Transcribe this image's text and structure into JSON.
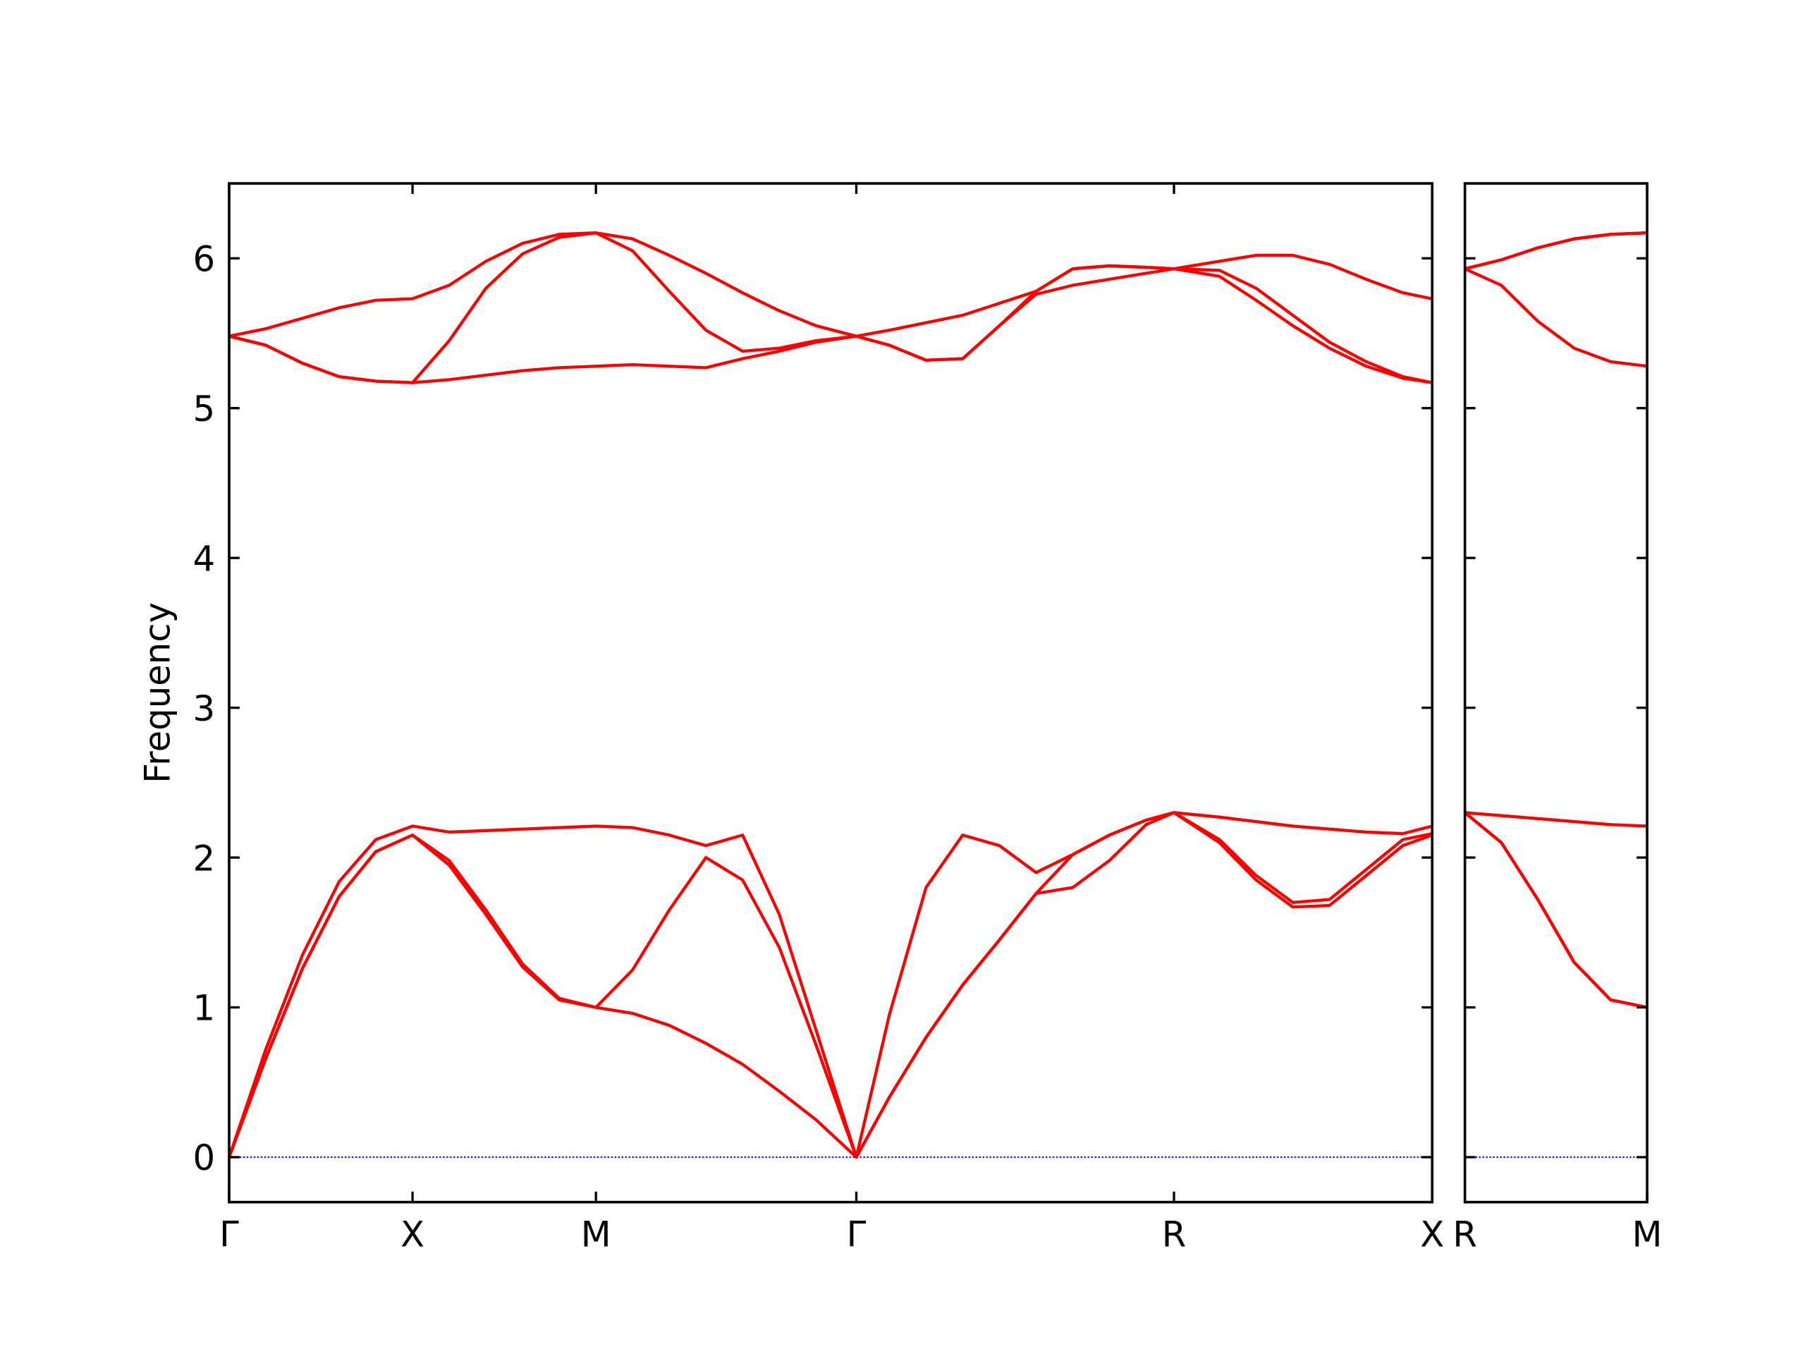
{
  "chart_data": [
    {
      "type": "line",
      "ylabel": "Frequency",
      "color": "#ff0000",
      "show_ytick_labels": true,
      "zero_line": {
        "value": 0,
        "color": "#0000ff"
      },
      "xlim": [
        0,
        3.28
      ],
      "ylim": [
        -0.3,
        6.5
      ],
      "yticks": [
        0,
        1,
        2,
        3,
        4,
        5,
        6
      ],
      "xticks": [
        {
          "value": 0,
          "label": "Γ"
        },
        {
          "value": 0.5,
          "label": "X"
        },
        {
          "value": 1.0,
          "label": "M"
        },
        {
          "value": 1.71,
          "label": "Γ"
        },
        {
          "value": 2.576,
          "label": "R"
        },
        {
          "value": 3.28,
          "label": "X"
        }
      ],
      "x": [
        0,
        0.1,
        0.2,
        0.3,
        0.4,
        0.5,
        0.6,
        0.7,
        0.8,
        0.9,
        1.0,
        1.1,
        1.2,
        1.3,
        1.4,
        1.5,
        1.6,
        1.71,
        1.8,
        1.9,
        2.0,
        2.1,
        2.2,
        2.3,
        2.4,
        2.5,
        2.576,
        2.7,
        2.8,
        2.9,
        3.0,
        3.1,
        3.2,
        3.28
      ],
      "series": [
        {
          "values": [
            0,
            0.66,
            1.26,
            1.74,
            2.04,
            2.15,
            1.95,
            1.62,
            1.27,
            1.05,
            1.0,
            0.96,
            0.88,
            0.76,
            0.62,
            0.44,
            0.25,
            0,
            0.4,
            0.8,
            1.15,
            1.45,
            1.76,
            1.8,
            1.98,
            2.22,
            2.3,
            2.1,
            1.85,
            1.67,
            1.68,
            1.88,
            2.08,
            2.15
          ]
        },
        {
          "values": [
            0,
            0.66,
            1.26,
            1.74,
            2.04,
            2.15,
            1.98,
            1.65,
            1.29,
            1.06,
            1.0,
            1.25,
            1.65,
            2.0,
            1.85,
            1.4,
            0.75,
            0,
            0.4,
            0.8,
            1.15,
            1.45,
            1.76,
            2.02,
            2.15,
            2.25,
            2.3,
            2.12,
            1.88,
            1.7,
            1.72,
            1.92,
            2.12,
            2.16
          ]
        },
        {
          "values": [
            0,
            0.72,
            1.35,
            1.84,
            2.12,
            2.21,
            2.17,
            2.18,
            2.19,
            2.2,
            2.21,
            2.2,
            2.15,
            2.08,
            2.15,
            1.62,
            0.85,
            0,
            0.95,
            1.8,
            2.15,
            2.08,
            1.9,
            2.02,
            2.15,
            2.25,
            2.3,
            2.27,
            2.24,
            2.21,
            2.19,
            2.17,
            2.16,
            2.21
          ]
        },
        {
          "values": [
            5.48,
            5.42,
            5.3,
            5.21,
            5.18,
            5.17,
            5.19,
            5.22,
            5.25,
            5.27,
            5.28,
            5.29,
            5.28,
            5.27,
            5.33,
            5.38,
            5.44,
            5.48,
            5.42,
            5.32,
            5.33,
            5.55,
            5.76,
            5.82,
            5.86,
            5.9,
            5.93,
            5.88,
            5.72,
            5.55,
            5.4,
            5.28,
            5.2,
            5.17
          ]
        },
        {
          "values": [
            5.48,
            5.42,
            5.3,
            5.21,
            5.18,
            5.17,
            5.45,
            5.8,
            6.03,
            6.14,
            6.17,
            6.05,
            5.78,
            5.52,
            5.38,
            5.4,
            5.45,
            5.48,
            5.42,
            5.32,
            5.33,
            5.55,
            5.78,
            5.93,
            5.95,
            5.94,
            5.93,
            5.92,
            5.8,
            5.62,
            5.44,
            5.31,
            5.21,
            5.17
          ]
        },
        {
          "values": [
            5.48,
            5.53,
            5.6,
            5.67,
            5.72,
            5.73,
            5.82,
            5.98,
            6.1,
            6.16,
            6.17,
            6.13,
            6.02,
            5.9,
            5.77,
            5.65,
            5.55,
            5.48,
            5.52,
            5.57,
            5.62,
            5.7,
            5.78,
            5.93,
            5.95,
            5.94,
            5.93,
            5.98,
            6.02,
            6.02,
            5.96,
            5.86,
            5.77,
            5.73
          ]
        }
      ]
    },
    {
      "type": "line",
      "color": "#ff0000",
      "show_ytick_labels": false,
      "zero_line": {
        "value": 0,
        "color": "#0000ff"
      },
      "xlim": [
        3.28,
        3.78
      ],
      "ylim": [
        -0.3,
        6.5
      ],
      "yticks": [
        0,
        1,
        2,
        3,
        4,
        5,
        6
      ],
      "xticks": [
        {
          "value": 3.28,
          "label": "R"
        },
        {
          "value": 3.78,
          "label": "M"
        }
      ],
      "x": [
        3.28,
        3.38,
        3.48,
        3.58,
        3.68,
        3.78
      ],
      "series": [
        {
          "values": [
            2.3,
            2.1,
            1.72,
            1.3,
            1.05,
            1.0
          ]
        },
        {
          "values": [
            2.3,
            2.1,
            1.72,
            1.3,
            1.05,
            1.0
          ]
        },
        {
          "values": [
            2.3,
            2.28,
            2.26,
            2.24,
            2.22,
            2.21
          ]
        },
        {
          "values": [
            5.93,
            5.82,
            5.58,
            5.4,
            5.31,
            5.28
          ]
        },
        {
          "values": [
            5.93,
            5.99,
            6.07,
            6.13,
            6.16,
            6.17
          ]
        },
        {
          "values": [
            5.93,
            5.99,
            6.07,
            6.13,
            6.16,
            6.17
          ]
        }
      ]
    }
  ]
}
